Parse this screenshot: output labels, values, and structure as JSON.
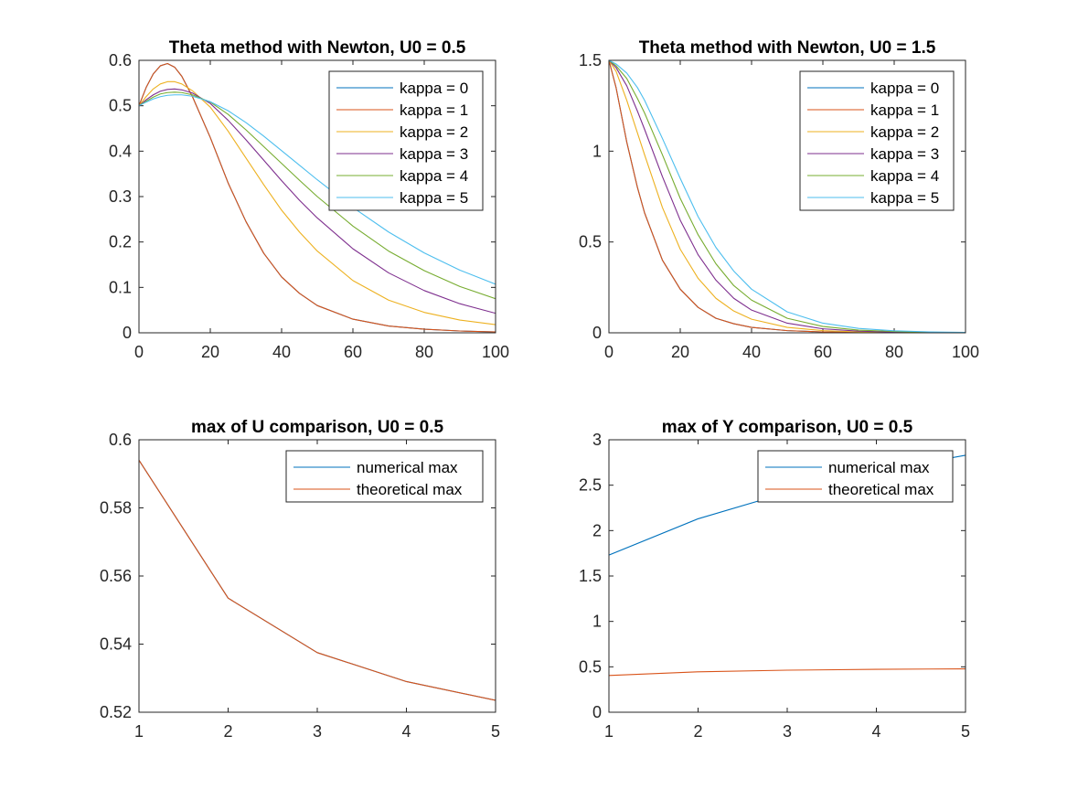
{
  "colors": [
    "#0072BD",
    "#D95319",
    "#EDB120",
    "#7E2F8E",
    "#77AC30",
    "#4DBEEE"
  ],
  "chart_data": [
    {
      "type": "line",
      "title": "Theta method with Newton, U0 = 0.5",
      "xlim": [
        0,
        100
      ],
      "ylim": [
        0,
        0.6
      ],
      "xticks": [
        "0",
        "20",
        "40",
        "60",
        "80",
        "100"
      ],
      "yticks": [
        "0",
        "0.1",
        "0.2",
        "0.3",
        "0.4",
        "0.5",
        "0.6"
      ],
      "legend_position": "top-right",
      "x": [
        0,
        2,
        4,
        6,
        8,
        10,
        12,
        15,
        20,
        25,
        30,
        35,
        40,
        45,
        50,
        60,
        70,
        80,
        90,
        100
      ],
      "series": [
        {
          "name": "kappa = 0",
          "values": [
            0.5,
            0.54,
            0.57,
            0.588,
            0.593,
            0.585,
            0.565,
            0.52,
            0.43,
            0.33,
            0.245,
            0.175,
            0.123,
            0.087,
            0.06,
            0.03,
            0.015,
            0.008,
            0.004,
            0.002
          ]
        },
        {
          "name": "kappa = 1",
          "values": [
            0.5,
            0.54,
            0.57,
            0.588,
            0.593,
            0.585,
            0.565,
            0.52,
            0.43,
            0.33,
            0.245,
            0.175,
            0.123,
            0.087,
            0.06,
            0.03,
            0.015,
            0.008,
            0.004,
            0.002
          ]
        },
        {
          "name": "kappa = 2",
          "values": [
            0.5,
            0.52,
            0.537,
            0.548,
            0.553,
            0.553,
            0.548,
            0.533,
            0.497,
            0.444,
            0.385,
            0.326,
            0.27,
            0.222,
            0.18,
            0.115,
            0.072,
            0.045,
            0.028,
            0.018
          ]
        },
        {
          "name": "kappa = 3",
          "values": [
            0.5,
            0.513,
            0.524,
            0.532,
            0.536,
            0.537,
            0.535,
            0.528,
            0.505,
            0.468,
            0.425,
            0.38,
            0.335,
            0.292,
            0.253,
            0.185,
            0.132,
            0.093,
            0.064,
            0.043
          ]
        },
        {
          "name": "kappa = 4",
          "values": [
            0.5,
            0.51,
            0.519,
            0.526,
            0.529,
            0.53,
            0.529,
            0.524,
            0.508,
            0.481,
            0.447,
            0.41,
            0.373,
            0.336,
            0.3,
            0.235,
            0.18,
            0.137,
            0.102,
            0.075
          ]
        },
        {
          "name": "kappa = 5",
          "values": [
            0.5,
            0.508,
            0.515,
            0.52,
            0.523,
            0.524,
            0.524,
            0.521,
            0.509,
            0.489,
            0.463,
            0.433,
            0.401,
            0.369,
            0.337,
            0.276,
            0.222,
            0.176,
            0.138,
            0.107
          ]
        }
      ]
    },
    {
      "type": "line",
      "title": "Theta method with Newton, U0 = 1.5",
      "xlim": [
        0,
        100
      ],
      "ylim": [
        0,
        1.5
      ],
      "xticks": [
        "0",
        "20",
        "40",
        "60",
        "80",
        "100"
      ],
      "yticks": [
        "0",
        "0.5",
        "1",
        "1.5"
      ],
      "legend_position": "top-right",
      "x": [
        0,
        2,
        5,
        8,
        10,
        15,
        20,
        25,
        30,
        35,
        40,
        50,
        60,
        70,
        80,
        90,
        100
      ],
      "series": [
        {
          "name": "kappa = 0",
          "values": [
            1.5,
            1.35,
            1.05,
            0.8,
            0.66,
            0.4,
            0.24,
            0.14,
            0.08,
            0.05,
            0.03,
            0.012,
            0.005,
            0.002,
            0.001,
            0.0,
            0.0
          ]
        },
        {
          "name": "kappa = 1",
          "values": [
            1.5,
            1.35,
            1.05,
            0.8,
            0.66,
            0.4,
            0.24,
            0.14,
            0.08,
            0.05,
            0.03,
            0.012,
            0.005,
            0.002,
            0.001,
            0.0,
            0.0
          ]
        },
        {
          "name": "kappa = 2",
          "values": [
            1.5,
            1.44,
            1.28,
            1.1,
            0.98,
            0.69,
            0.46,
            0.3,
            0.19,
            0.12,
            0.075,
            0.03,
            0.012,
            0.005,
            0.002,
            0.001,
            0.0
          ]
        },
        {
          "name": "kappa = 3",
          "values": [
            1.5,
            1.46,
            1.36,
            1.22,
            1.12,
            0.86,
            0.62,
            0.43,
            0.29,
            0.19,
            0.125,
            0.053,
            0.022,
            0.009,
            0.004,
            0.002,
            0.001
          ]
        },
        {
          "name": "kappa = 4",
          "values": [
            1.5,
            1.47,
            1.4,
            1.29,
            1.21,
            0.98,
            0.74,
            0.54,
            0.38,
            0.26,
            0.18,
            0.08,
            0.035,
            0.015,
            0.007,
            0.003,
            0.001
          ]
        },
        {
          "name": "kappa = 5",
          "values": [
            1.5,
            1.48,
            1.43,
            1.35,
            1.28,
            1.07,
            0.85,
            0.64,
            0.47,
            0.34,
            0.24,
            0.115,
            0.053,
            0.024,
            0.011,
            0.005,
            0.002
          ]
        }
      ]
    },
    {
      "type": "line",
      "title": "max of U comparison, U0 = 0.5",
      "xlim": [
        1,
        5
      ],
      "ylim": [
        0.52,
        0.6
      ],
      "xticks": [
        "1",
        "2",
        "3",
        "4",
        "5"
      ],
      "yticks": [
        "0.52",
        "0.54",
        "0.56",
        "0.58",
        "0.6"
      ],
      "legend_position": "top-right",
      "x": [
        1,
        2,
        3,
        4,
        5
      ],
      "series": [
        {
          "name": "numerical max",
          "values": [
            0.594,
            0.5535,
            0.5375,
            0.529,
            0.5235
          ]
        },
        {
          "name": "theoretical max",
          "values": [
            0.594,
            0.5535,
            0.5375,
            0.529,
            0.5235
          ]
        }
      ]
    },
    {
      "type": "line",
      "title": "max of Y comparison, U0 = 0.5",
      "xlim": [
        1,
        5
      ],
      "ylim": [
        0,
        3
      ],
      "xticks": [
        "1",
        "2",
        "3",
        "4",
        "5"
      ],
      "yticks": [
        "0",
        "0.5",
        "1",
        "1.5",
        "2",
        "2.5",
        "3"
      ],
      "legend_position": "top-right",
      "x": [
        1,
        2,
        3,
        4,
        5
      ],
      "series": [
        {
          "name": "numerical max",
          "values": [
            1.73,
            2.13,
            2.42,
            2.65,
            2.83
          ]
        },
        {
          "name": "theoretical max",
          "values": [
            0.405,
            0.445,
            0.463,
            0.472,
            0.478
          ]
        }
      ]
    }
  ]
}
